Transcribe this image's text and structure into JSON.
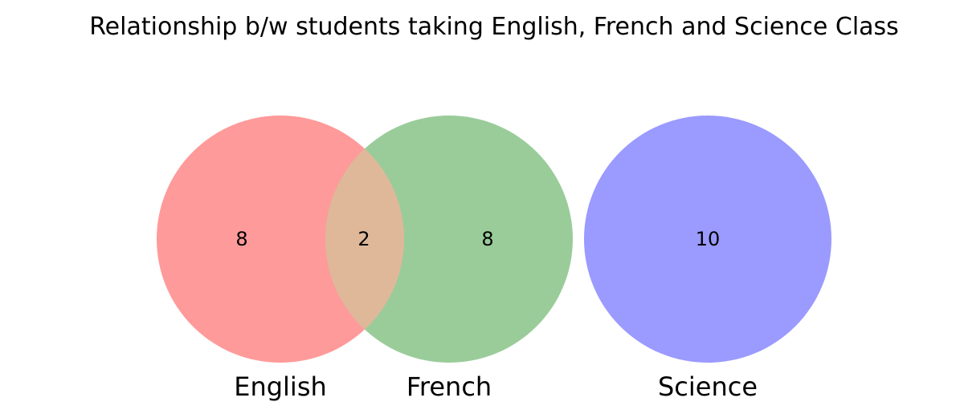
{
  "title": "Relationship b/w students taking English, French and Science Class",
  "sets": [
    {
      "name": "English",
      "color": "#ff9a9a"
    },
    {
      "name": "French",
      "color": "#9acc9a"
    },
    {
      "name": "Science",
      "color": "#9a9aff"
    }
  ],
  "overlap_color": "#dfb89a",
  "counts": {
    "english_only": "8",
    "english_french": "2",
    "french_only": "8",
    "science_only": "10"
  }
}
